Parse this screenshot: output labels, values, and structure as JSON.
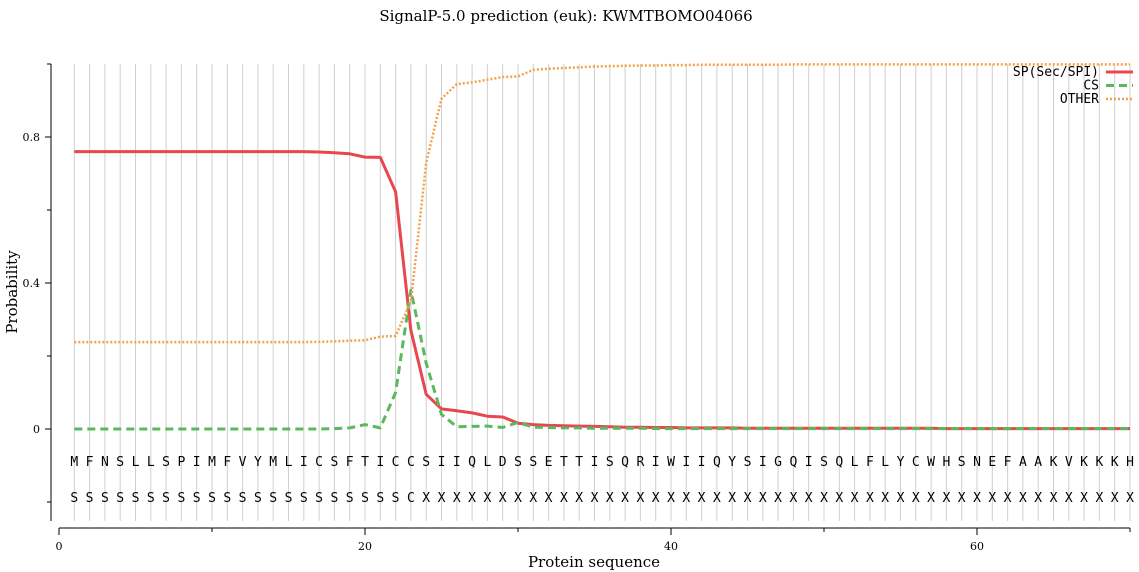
{
  "chart_data": {
    "type": "line",
    "title": "SignalP-5.0 prediction (euk):  KWMTBOMO04066",
    "xlabel": "Protein sequence",
    "ylabel": "Probability",
    "xlim": [
      0,
      70
    ],
    "ylim": [
      -0.25,
      1.0
    ],
    "xticks": [
      0,
      20,
      40,
      60
    ],
    "yticks": [
      0,
      0.4,
      0.8
    ],
    "yticks_minor": [
      -0.2,
      0.2,
      0.6,
      1.0
    ],
    "grid": "vertical line at every residue",
    "legend_position": "top-right",
    "sequence": [
      "M",
      "F",
      "N",
      "S",
      "L",
      "L",
      "S",
      "P",
      "I",
      "M",
      "F",
      "V",
      "Y",
      "M",
      "L",
      "I",
      "C",
      "S",
      "F",
      "T",
      "I",
      "C",
      "C",
      "S",
      "I",
      "I",
      "Q",
      "L",
      "D",
      "S",
      "S",
      "E",
      "T",
      "T",
      "I",
      "S",
      "Q",
      "R",
      "I",
      "W",
      "I",
      "I",
      "Q",
      "Y",
      "S",
      "I",
      "G",
      "Q",
      "I",
      "S",
      "Q",
      "L",
      "F",
      "L",
      "Y",
      "C",
      "W",
      "H",
      "S",
      "N",
      "E",
      "F",
      "A",
      "A",
      "K",
      "V",
      "K",
      "K",
      "K",
      "H"
    ],
    "labels": [
      "S",
      "S",
      "S",
      "S",
      "S",
      "S",
      "S",
      "S",
      "S",
      "S",
      "S",
      "S",
      "S",
      "S",
      "S",
      "S",
      "S",
      "S",
      "S",
      "S",
      "S",
      "S",
      "C",
      "X",
      "X",
      "X",
      "X",
      "X",
      "X",
      "X",
      "X",
      "X",
      "X",
      "X",
      "X",
      "X",
      "X",
      "X",
      "X",
      "X",
      "X",
      "X",
      "X",
      "X",
      "X",
      "X",
      "X",
      "X",
      "X",
      "X",
      "X",
      "X",
      "X",
      "X",
      "X",
      "X",
      "X",
      "X",
      "X",
      "X",
      "X",
      "X",
      "X",
      "X",
      "X",
      "X",
      "X",
      "X",
      "X",
      "X"
    ],
    "series": [
      {
        "name": "SP(Sec/SPI)",
        "color": "#e8474f",
        "style": "solid",
        "values": [
          0.76,
          0.76,
          0.76,
          0.76,
          0.76,
          0.76,
          0.76,
          0.76,
          0.76,
          0.76,
          0.76,
          0.76,
          0.76,
          0.76,
          0.76,
          0.76,
          0.759,
          0.757,
          0.754,
          0.745,
          0.744,
          0.65,
          0.27,
          0.095,
          0.055,
          0.05,
          0.044,
          0.035,
          0.033,
          0.016,
          0.012,
          0.01,
          0.009,
          0.008,
          0.007,
          0.006,
          0.005,
          0.005,
          0.004,
          0.004,
          0.003,
          0.003,
          0.003,
          0.003,
          0.002,
          0.002,
          0.002,
          0.002,
          0.002,
          0.002,
          0.002,
          0.002,
          0.002,
          0.002,
          0.002,
          0.002,
          0.002,
          0.001,
          0.001,
          0.001,
          0.001,
          0.001,
          0.001,
          0.001,
          0.001,
          0.001,
          0.001,
          0.001,
          0.001,
          0.001
        ]
      },
      {
        "name": "CS",
        "color": "#5cb85c",
        "style": "dashed",
        "values": [
          0,
          0,
          0,
          0,
          0,
          0,
          0,
          0,
          0,
          0,
          0,
          0,
          0,
          0,
          0,
          0,
          0,
          0.001,
          0.003,
          0.012,
          0.003,
          0.1,
          0.38,
          0.18,
          0.04,
          0.006,
          0.007,
          0.008,
          0.004,
          0.018,
          0.005,
          0.004,
          0.003,
          0.003,
          0.002,
          0.002,
          0.002,
          0.002,
          0.001,
          0.001,
          0.001,
          0.001,
          0.001,
          0.001,
          0.001,
          0.001,
          0.001,
          0.001,
          0.001,
          0.001,
          0.001,
          0.001,
          0.001,
          0.001,
          0.001,
          0.001,
          0.001,
          0.001,
          0.001,
          0.001,
          0.001,
          0.001,
          0.001,
          0.001,
          0.001,
          0.001,
          0.001,
          0.001,
          0.001,
          0.001
        ]
      },
      {
        "name": "OTHER",
        "color": "#f5a04a",
        "style": "dotted",
        "values": [
          0.238,
          0.238,
          0.238,
          0.238,
          0.238,
          0.238,
          0.238,
          0.238,
          0.238,
          0.238,
          0.238,
          0.238,
          0.238,
          0.238,
          0.238,
          0.238,
          0.239,
          0.24,
          0.242,
          0.243,
          0.253,
          0.255,
          0.35,
          0.73,
          0.905,
          0.945,
          0.95,
          0.957,
          0.964,
          0.966,
          0.984,
          0.987,
          0.989,
          0.991,
          0.993,
          0.994,
          0.995,
          0.996,
          0.996,
          0.997,
          0.997,
          0.998,
          0.998,
          0.998,
          0.998,
          0.998,
          0.998,
          0.999,
          0.999,
          0.999,
          0.999,
          0.999,
          0.999,
          0.999,
          0.999,
          0.999,
          0.999,
          0.999,
          0.999,
          0.999,
          0.999,
          0.999,
          0.999,
          0.999,
          0.999,
          0.999,
          0.999,
          0.999,
          0.999,
          0.999
        ]
      }
    ]
  }
}
